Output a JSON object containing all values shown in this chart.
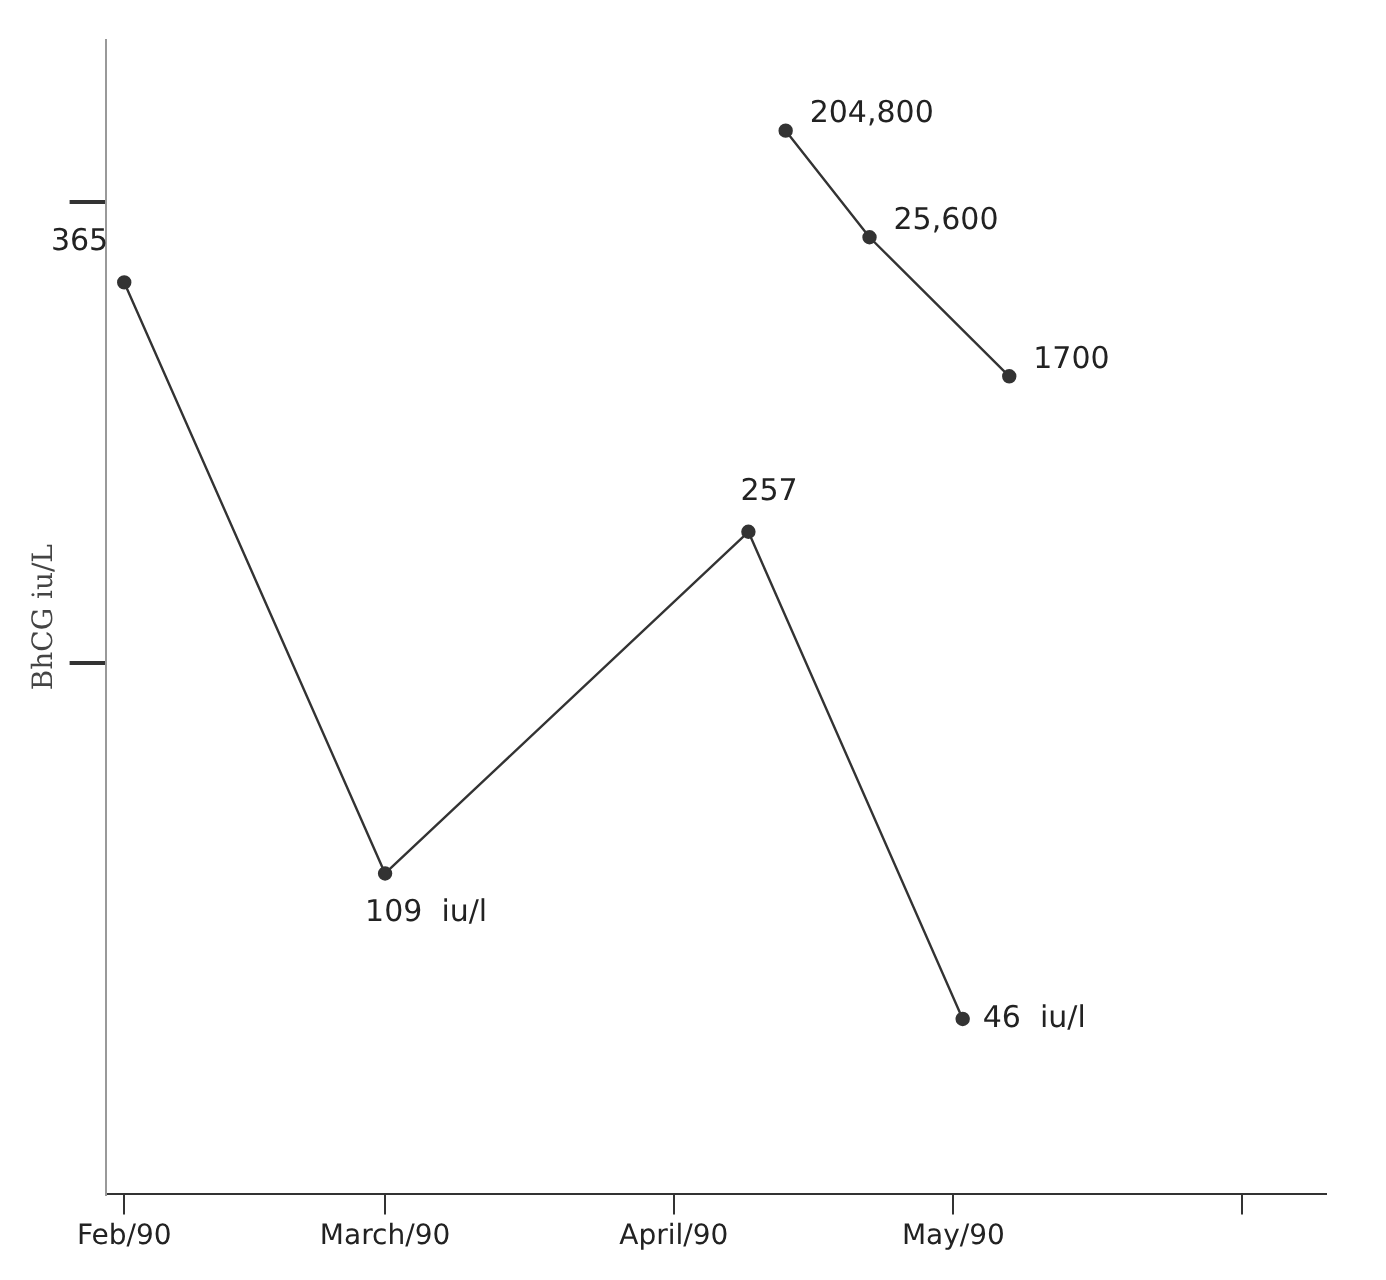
{
  "chart_data": {
    "type": "line",
    "ylabel": "BhCG iu/L",
    "xlim": [
      "1990-01-30",
      "1990-06-10"
    ],
    "xticks": [
      {
        "value": "1990-02-01",
        "label": "Feb/90"
      },
      {
        "value": "1990-03-01",
        "label": "March/90"
      },
      {
        "value": "1990-04-01",
        "label": "April/90"
      },
      {
        "value": "1990-05-01",
        "label": "May/90"
      },
      {
        "value": "1990-06-01",
        "label": null
      }
    ],
    "ylim": [
      -30,
      470
    ],
    "y2lim": [
      0.0002,
      1200000
    ],
    "log": "y2",
    "tick_labels": "x",
    "grid": false,
    "legend": false,
    "marker": "circle",
    "line_style": "solid",
    "series": [
      {
        "color": "#333333",
        "x": [
          "1990-02-01",
          "1990-03-01",
          "1990-04-09",
          "1990-05-02"
        ],
        "values": [
          365,
          109,
          257,
          46
        ],
        "value_labels": [
          "365",
          "109  iu/l",
          "257",
          "46  iu/l"
        ]
      },
      {
        "color": "#333333",
        "axis": "y2",
        "x": [
          "1990-04-13",
          "1990-04-22",
          "1990-05-07"
        ],
        "values": [
          204800,
          25600,
          1700
        ],
        "value_labels": [
          "204,800",
          "25,600",
          "1700"
        ]
      }
    ]
  }
}
